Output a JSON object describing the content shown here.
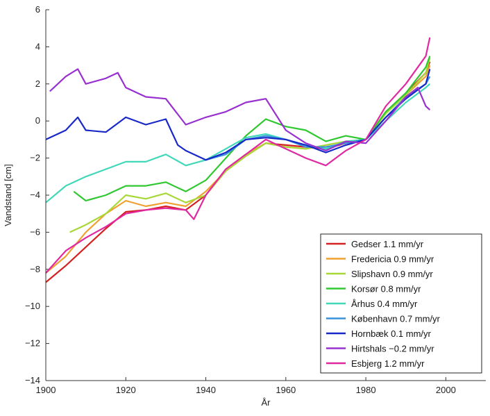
{
  "chart_data": {
    "type": "line",
    "title": "",
    "xlabel": "År",
    "ylabel": "Vandstand [cm]",
    "xlim": [
      1900,
      2010
    ],
    "ylim": [
      -14,
      6
    ],
    "xticks": [
      1900,
      1920,
      1940,
      1960,
      1980,
      2000
    ],
    "yticks": [
      -14,
      -12,
      -10,
      -8,
      -6,
      -4,
      -2,
      0,
      2,
      4,
      6
    ],
    "grid": false,
    "legend_position": "bottom-right",
    "series": [
      {
        "name": "Gedser 1.1 mm/yr",
        "color": "#d42020",
        "x": [
          1900,
          1905,
          1910,
          1915,
          1920,
          1925,
          1930,
          1935,
          1940,
          1945,
          1950,
          1955,
          1960,
          1965,
          1970,
          1975,
          1980,
          1985,
          1990,
          1995,
          1996
        ],
        "y": [
          -8.7,
          -7.8,
          -6.8,
          -5.8,
          -4.9,
          -4.8,
          -4.6,
          -4.8,
          -4.0,
          -2.6,
          -1.8,
          -1.2,
          -1.3,
          -1.4,
          -1.5,
          -1.2,
          -1.0,
          0.5,
          1.5,
          2.6,
          3.2
        ]
      },
      {
        "name": "Fredericia 0.9 mm/yr",
        "color": "#f0a030",
        "x": [
          1900,
          1905,
          1910,
          1915,
          1920,
          1925,
          1930,
          1935,
          1940,
          1945,
          1950,
          1955,
          1960,
          1965,
          1970,
          1975,
          1980,
          1985,
          1990,
          1995,
          1996
        ],
        "y": [
          -8.2,
          -7.3,
          -6.0,
          -5.0,
          -4.3,
          -4.6,
          -4.4,
          -4.6,
          -3.8,
          -2.7,
          -1.8,
          -1.2,
          -1.4,
          -1.5,
          -1.3,
          -1.1,
          -1.0,
          0.5,
          1.4,
          2.4,
          3.0
        ]
      },
      {
        "name": "Slipshavn 0.9 mm/yr",
        "color": "#a8d838",
        "x": [
          1906,
          1910,
          1915,
          1920,
          1925,
          1930,
          1935,
          1940,
          1945,
          1950,
          1955,
          1960,
          1965,
          1970,
          1975,
          1980,
          1985,
          1990,
          1995,
          1996
        ],
        "y": [
          -6.0,
          -5.6,
          -5.0,
          -4.0,
          -4.2,
          -3.9,
          -4.4,
          -4.0,
          -2.7,
          -1.9,
          -1.2,
          -1.4,
          -1.5,
          -1.3,
          -1.1,
          -1.0,
          0.4,
          1.4,
          2.6,
          3.4
        ]
      },
      {
        "name": "Korsør 0.8 mm/yr",
        "color": "#30c830",
        "x": [
          1907,
          1910,
          1915,
          1920,
          1925,
          1930,
          1935,
          1940,
          1945,
          1950,
          1955,
          1960,
          1965,
          1970,
          1975,
          1980,
          1985,
          1990,
          1995,
          1996
        ],
        "y": [
          -3.8,
          -4.3,
          -4.0,
          -3.5,
          -3.5,
          -3.3,
          -3.8,
          -3.2,
          -2.0,
          -0.8,
          0.1,
          -0.3,
          -0.5,
          -1.1,
          -0.8,
          -1.0,
          0.5,
          1.5,
          2.9,
          3.5
        ]
      },
      {
        "name": "Århus 0.4 mm/yr",
        "color": "#40d8b8",
        "x": [
          1900,
          1905,
          1910,
          1915,
          1920,
          1925,
          1930,
          1935,
          1940,
          1945,
          1950,
          1955,
          1960,
          1965,
          1970,
          1975,
          1980,
          1985,
          1990,
          1995,
          1996
        ],
        "y": [
          -4.4,
          -3.5,
          -3.0,
          -2.6,
          -2.2,
          -2.2,
          -1.8,
          -2.4,
          -2.1,
          -1.5,
          -0.9,
          -0.7,
          -1.0,
          -1.3,
          -1.5,
          -1.1,
          -1.0,
          0.0,
          1.0,
          1.8,
          2.0
        ]
      },
      {
        "name": "København 0.7 mm/yr",
        "color": "#3890d8",
        "x": [
          1940,
          1945,
          1950,
          1955,
          1960,
          1965,
          1970,
          1975,
          1980,
          1985,
          1990,
          1995,
          1996
        ],
        "y": [
          -2.1,
          -1.8,
          -1.0,
          -0.8,
          -1.0,
          -1.4,
          -1.4,
          -1.2,
          -1.0,
          0.2,
          1.3,
          2.0,
          2.4
        ]
      },
      {
        "name": "Hornbæk 0.1 mm/yr",
        "color": "#1828c8",
        "x": [
          1900,
          1905,
          1908,
          1910,
          1915,
          1920,
          1925,
          1930,
          1933,
          1935,
          1940,
          1945,
          1950,
          1955,
          1960,
          1965,
          1970,
          1975,
          1980,
          1985,
          1990,
          1995,
          1996
        ],
        "y": [
          -1.0,
          -0.5,
          0.2,
          -0.5,
          -0.6,
          0.2,
          -0.2,
          0.1,
          -1.3,
          -1.6,
          -2.1,
          -1.7,
          -1.0,
          -0.9,
          -1.0,
          -1.3,
          -1.7,
          -1.3,
          -1.0,
          0.2,
          1.2,
          2.0,
          2.8
        ]
      },
      {
        "name": "Hirtshals −0.2 mm/yr",
        "color": "#9830d0",
        "x": [
          1901,
          1905,
          1908,
          1910,
          1915,
          1918,
          1920,
          1925,
          1930,
          1935,
          1940,
          1945,
          1950,
          1955,
          1960,
          1965,
          1970,
          1975,
          1980,
          1985,
          1990,
          1993,
          1995,
          1996
        ],
        "y": [
          1.6,
          2.4,
          2.8,
          2.0,
          2.3,
          2.6,
          1.8,
          1.3,
          1.2,
          -0.2,
          0.2,
          0.5,
          1.0,
          1.2,
          -0.5,
          -1.2,
          -1.6,
          -1.1,
          -1.2,
          0.0,
          1.3,
          1.8,
          0.8,
          0.6
        ]
      },
      {
        "name": "Esbjerg 1.2 mm/yr",
        "color": "#e028a0",
        "x": [
          1900,
          1905,
          1910,
          1915,
          1920,
          1925,
          1930,
          1935,
          1937,
          1940,
          1945,
          1950,
          1955,
          1960,
          1965,
          1970,
          1975,
          1980,
          1985,
          1990,
          1995,
          1996
        ],
        "y": [
          -8.2,
          -7.0,
          -6.3,
          -5.7,
          -5.0,
          -4.8,
          -4.7,
          -4.8,
          -5.3,
          -4.0,
          -2.6,
          -1.8,
          -1.0,
          -1.5,
          -2.0,
          -2.4,
          -1.6,
          -1.0,
          0.8,
          2.0,
          3.5,
          4.5
        ]
      }
    ]
  }
}
